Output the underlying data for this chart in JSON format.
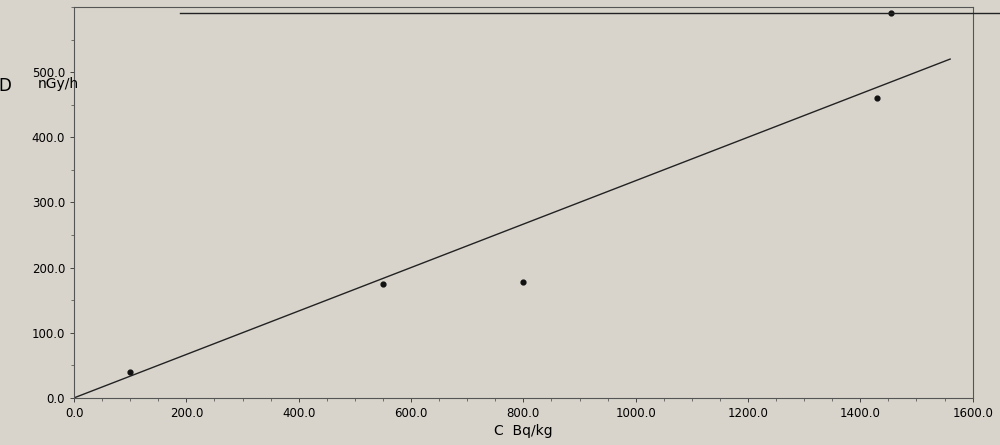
{
  "scatter_x": [
    100,
    550,
    800,
    1430,
    1455
  ],
  "scatter_y": [
    40,
    175,
    178,
    460,
    590
  ],
  "line_x": [
    0,
    1560
  ],
  "line_y": [
    0,
    520
  ],
  "xlabel": "C  Bq/kg",
  "ylabel_d": "D",
  "ylabel_unit": "nGy/h",
  "xlim": [
    0.0,
    1600.0
  ],
  "ylim": [
    0.0,
    600.0
  ],
  "xticks": [
    0.0,
    200.0,
    400.0,
    600.0,
    800.0,
    1000.0,
    1200.0,
    1400.0,
    1600.0
  ],
  "yticks": [
    0.0,
    100.0,
    200.0,
    300.0,
    400.0,
    500.0
  ],
  "background_color": "#d8d4cc",
  "line_color": "#222222",
  "scatter_color": "#111111",
  "figsize": [
    10.0,
    4.45
  ],
  "dpi": 100,
  "top_line_xmin": 0.18,
  "top_line_xmax": 1.0
}
